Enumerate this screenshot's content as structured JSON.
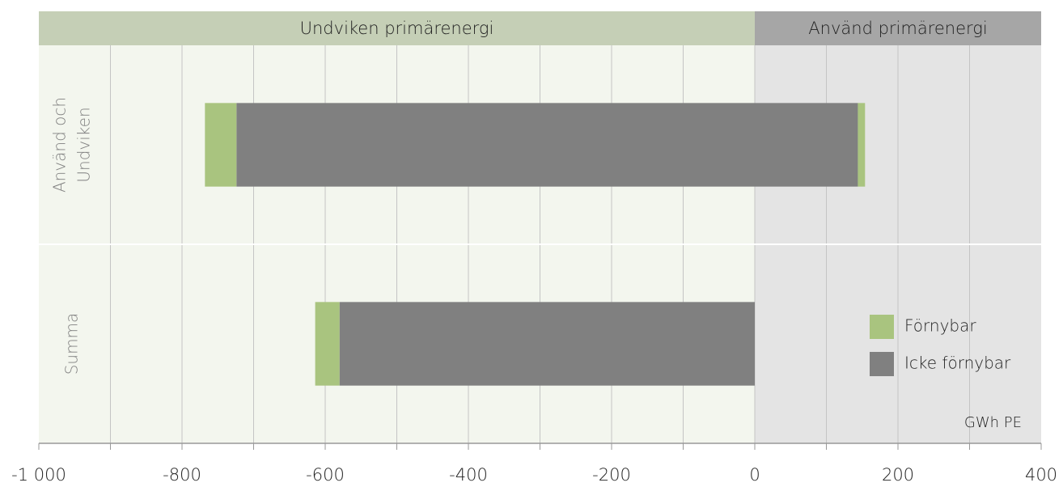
{
  "chart_data": {
    "type": "bar",
    "orientation": "horizontal",
    "stacked": true,
    "regions": [
      {
        "label": "Undviken primärenergi",
        "from": -1000,
        "to": 0,
        "color": "#c5cfb6",
        "background": "#f3f6ee"
      },
      {
        "label": "Använd primärenergi",
        "from": 0,
        "to": 400,
        "color": "#a6a6a6",
        "background": "#e4e4e4"
      }
    ],
    "categories": [
      [
        "Använd och",
        "Undviken"
      ],
      "Summa"
    ],
    "series": [
      {
        "name": "Förnybar",
        "color": "#a9c47f",
        "values": [
          -44,
          -34
        ],
        "used_values": [
          10,
          null
        ]
      },
      {
        "name": "Icke förnybar",
        "color": "#808080",
        "values": [
          -724,
          -580
        ],
        "used_values": [
          144,
          null
        ]
      }
    ],
    "xlim": [
      -1000,
      400
    ],
    "xticks": [
      {
        "value": -1000,
        "label": "-1 000"
      },
      -800,
      -600,
      -400,
      -200,
      0,
      200,
      400
    ],
    "xminor": [
      -900,
      -700,
      -500,
      -300,
      -100,
      100,
      300
    ],
    "unit": "GWh PE",
    "grid": true,
    "legend": "right"
  }
}
